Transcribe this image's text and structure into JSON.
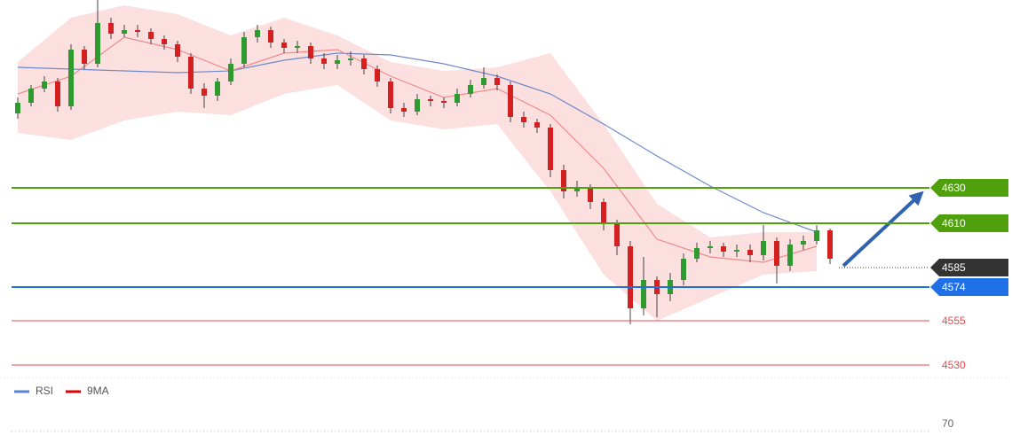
{
  "chart_data": {
    "type": "candlestick",
    "ylim": [
      4524,
      4736
    ],
    "colors": {
      "up": "#2f9a2f",
      "down": "#d42020"
    },
    "open": [
      4672,
      4678,
      4686,
      4690,
      4676,
      4708,
      4700,
      4723,
      4717,
      4719,
      4718,
      4714,
      4711,
      4704,
      4686,
      4682,
      4690,
      4700,
      4715,
      4719,
      4712,
      4709,
      4710,
      4703,
      4700,
      4702,
      4703,
      4697,
      4690,
      4675,
      4673,
      4680,
      4679,
      4678,
      4683,
      4688,
      4692,
      4688,
      4670,
      4667,
      4664,
      4640,
      4628,
      4630,
      4622,
      4610,
      4597,
      4562,
      4578,
      4570,
      4578,
      4590,
      4596,
      4597,
      4594,
      4595,
      4592,
      4600,
      4586,
      4598,
      4600,
      4606
    ],
    "high": [
      4681,
      4688,
      4693,
      4692,
      4711,
      4710,
      4736,
      4726,
      4722,
      4722,
      4720,
      4716,
      4713,
      4706,
      4689,
      4692,
      4703,
      4718,
      4722,
      4721,
      4714,
      4713,
      4712,
      4706,
      4705,
      4707,
      4705,
      4699,
      4692,
      4678,
      4683,
      4682,
      4681,
      4686,
      4691,
      4698,
      4694,
      4690,
      4673,
      4669,
      4666,
      4643,
      4634,
      4632,
      4624,
      4612,
      4600,
      4591,
      4580,
      4582,
      4593,
      4599,
      4600,
      4599,
      4598,
      4598,
      4609,
      4602,
      4601,
      4603,
      4609,
      4607
    ],
    "low": [
      4669,
      4676,
      4684,
      4673,
      4674,
      4697,
      4698,
      4714,
      4715,
      4715,
      4711,
      4708,
      4701,
      4683,
      4675,
      4679,
      4688,
      4698,
      4712,
      4709,
      4706,
      4706,
      4700,
      4697,
      4697,
      4699,
      4694,
      4687,
      4672,
      4670,
      4671,
      4676,
      4675,
      4676,
      4681,
      4686,
      4685,
      4667,
      4664,
      4661,
      4636,
      4624,
      4625,
      4618,
      4606,
      4592,
      4553,
      4558,
      4557,
      4566,
      4575,
      4588,
      4593,
      4591,
      4591,
      4588,
      4589,
      4576,
      4583,
      4595,
      4598,
      4587
    ],
    "close": [
      4678,
      4686,
      4690,
      4676,
      4708,
      4700,
      4723,
      4717,
      4719,
      4718,
      4714,
      4711,
      4704,
      4686,
      4682,
      4690,
      4700,
      4715,
      4719,
      4712,
      4709,
      4710,
      4703,
      4700,
      4702,
      4703,
      4697,
      4690,
      4675,
      4673,
      4680,
      4679,
      4678,
      4683,
      4688,
      4692,
      4688,
      4670,
      4667,
      4664,
      4640,
      4628,
      4630,
      4622,
      4610,
      4597,
      4562,
      4578,
      4570,
      4578,
      4590,
      4596,
      4597,
      4594,
      4595,
      4592,
      4600,
      4586,
      4598,
      4600,
      4606,
      4590
    ],
    "indicators": {
      "x": [
        0,
        4,
        8,
        12,
        16,
        20,
        24,
        28,
        32,
        36,
        40,
        44,
        48,
        52,
        56,
        60
      ],
      "band": {
        "color": "#fbd6d6",
        "upper": [
          4701,
          4726,
          4733,
          4728,
          4716,
          4726,
          4716,
          4701,
          4696,
          4698,
          4706,
          4666,
          4621,
          4602,
          4605,
          4605
        ],
        "lower": [
          4661,
          4657,
          4668,
          4673,
          4671,
          4683,
          4688,
          4668,
          4663,
          4666,
          4628,
          4581,
          4555,
          4568,
          4581,
          4583
        ]
      },
      "series": [
        {
          "color": "#6f89c9",
          "values": [
            4698,
            4697,
            4696,
            4695,
            4696,
            4702,
            4706,
            4705,
            4700,
            4693,
            4683,
            4666,
            4648,
            4631,
            4616,
            4605
          ]
        },
        {
          "color": "#f08a8a",
          "values": [
            4683,
            4693,
            4715,
            4708,
            4696,
            4706,
            4708,
            4693,
            4681,
            4686,
            4671,
            4641,
            4601,
            4591,
            4588,
            4597
          ]
        }
      ]
    },
    "levels": [
      {
        "value": 4630,
        "color": "#4fa00c",
        "line": "solid",
        "label": "box"
      },
      {
        "value": 4610,
        "color": "#4fa00c",
        "line": "solid",
        "label": "box"
      },
      {
        "value": 4585,
        "color": "#333333",
        "line": "dotted",
        "label": "box"
      },
      {
        "value": 4574,
        "color": "#1f6fe6",
        "line": "solid",
        "label": "box"
      },
      {
        "value": 4555,
        "color": "#e8474c",
        "line": "thin",
        "label": "text"
      },
      {
        "value": 4530,
        "color": "#e8474c",
        "line": "thin",
        "label": "text"
      }
    ],
    "legend": [
      {
        "name": "RSI",
        "color": "#5a7fd6"
      },
      {
        "name": "9MA",
        "color": "#e00000"
      }
    ],
    "rsi_panel": {
      "yticks": [
        70
      ]
    }
  }
}
